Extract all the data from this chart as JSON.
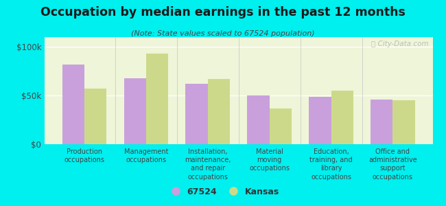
{
  "title": "Occupation by median earnings in the past 12 months",
  "subtitle": "(Note: State values scaled to 67524 population)",
  "categories": [
    "Production\noccupations",
    "Management\noccupations",
    "Installation,\nmaintenance,\nand repair\noccupations",
    "Material\nmoving\noccupations",
    "Education,\ntraining, and\nlibrary\noccupations",
    "Office and\nadministrative\nsupport\noccupations"
  ],
  "values_67524": [
    82000,
    68000,
    62000,
    50000,
    49000,
    46000
  ],
  "values_kansas": [
    57000,
    93000,
    67000,
    37000,
    55000,
    45000
  ],
  "color_67524": "#c9a0dc",
  "color_kansas": "#cdd98a",
  "background_chart": "#eef5d8",
  "background_fig": "#00efef",
  "ylim": [
    0,
    110000
  ],
  "yticks": [
    0,
    50000,
    100000
  ],
  "yticklabels": [
    "$0",
    "$50k",
    "$100k"
  ],
  "legend_labels": [
    "67524",
    "Kansas"
  ],
  "watermark": "ⓘ City-Data.com"
}
